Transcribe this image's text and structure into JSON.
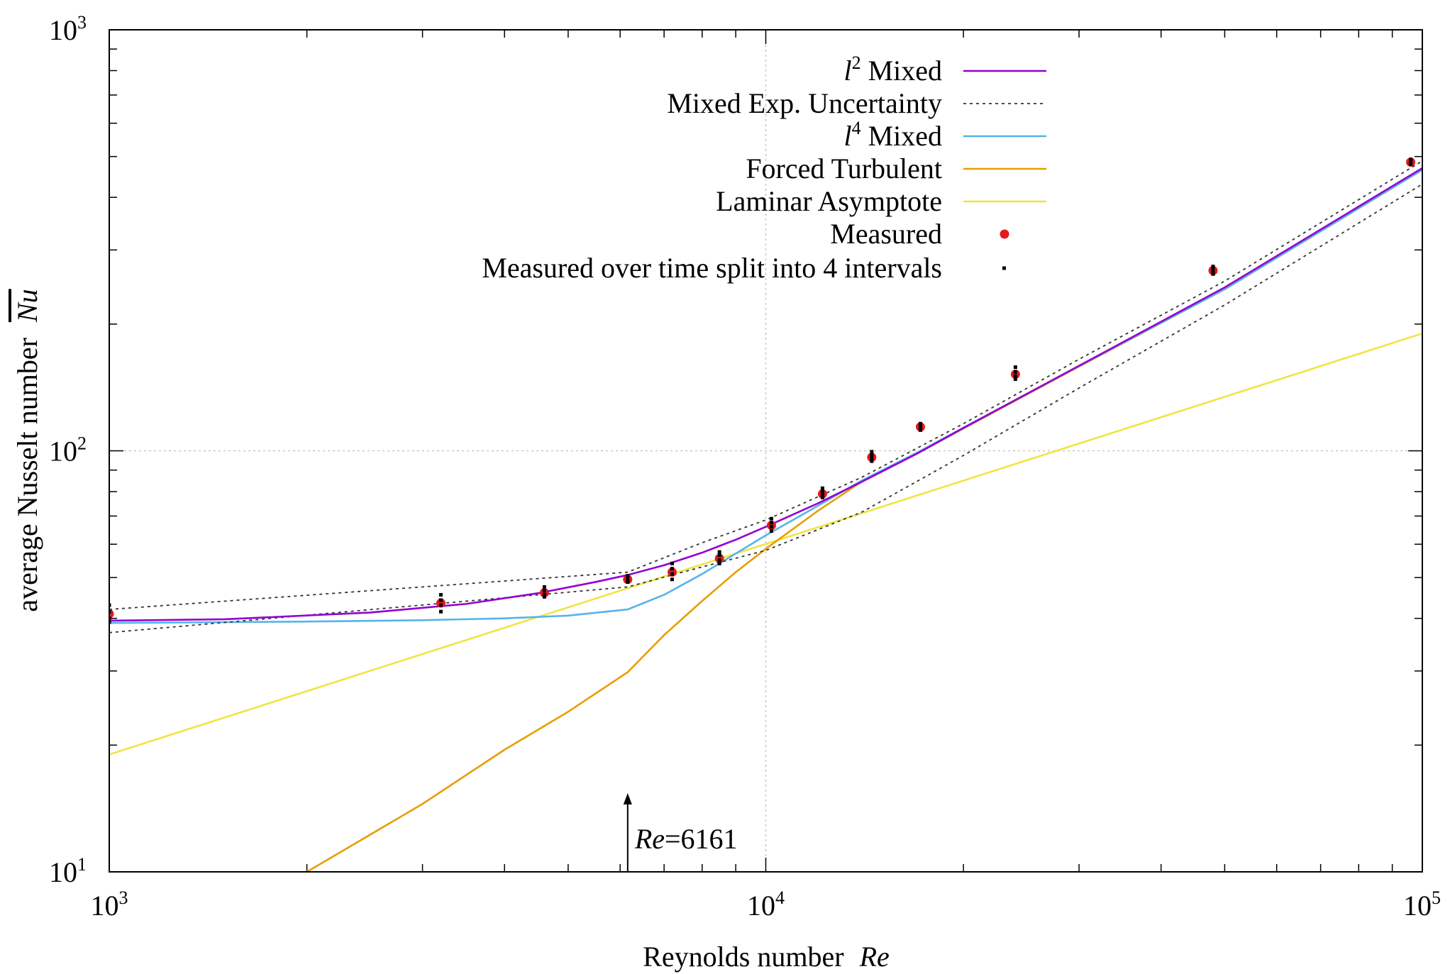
{
  "chart_data": {
    "type": "line",
    "xscale": "log",
    "yscale": "log",
    "xlim": [
      1000,
      100000
    ],
    "ylim": [
      10,
      1000
    ],
    "x_ticks": [
      {
        "base": "10",
        "exp": "3",
        "value": 1000
      },
      {
        "base": "10",
        "exp": "4",
        "value": 10000
      },
      {
        "base": "10",
        "exp": "5",
        "value": 100000
      }
    ],
    "y_ticks": [
      {
        "base": "10",
        "exp": "1",
        "value": 10
      },
      {
        "base": "10",
        "exp": "2",
        "value": 100
      },
      {
        "base": "10",
        "exp": "3",
        "value": 1000
      }
    ],
    "xlabel": "Reynolds number",
    "xlabel_symbol": "Re",
    "ylabel": "average Nusselt number",
    "ylabel_symbol": "Nu",
    "grid": "major lines at 10^4 (x) and 10^2 (y), dotted",
    "legend_position": "top-right",
    "annotation": {
      "symbol": "Re",
      "text": "=6161",
      "x": 6161
    },
    "series": [
      {
        "name_prefix": "l",
        "name_sup": "2",
        "name_suffix": " Mixed",
        "style": "line",
        "color": "#9400d3",
        "x": [
          1000,
          1500,
          2500,
          3500,
          4500,
          5500,
          6161,
          7000,
          8000,
          9000,
          10000,
          12000,
          14000,
          17000,
          20000,
          30000,
          50000,
          100000
        ],
        "y": [
          39.5,
          39.8,
          41.3,
          43.3,
          45.9,
          48.8,
          50.7,
          53.5,
          57.3,
          61.5,
          66.0,
          75.0,
          84.4,
          98.5,
          113.3,
          159.2,
          244.4,
          469.4
        ]
      },
      {
        "name": "Mixed Exp. Uncertainty",
        "style": "dotted",
        "color": "#333333",
        "bands": [
          {
            "x": [
              1000,
              6161,
              8000,
              10000,
              14000,
              20000,
              30000,
              50000,
              100000
            ],
            "y": [
              42.0,
              51.5,
              60.5,
              68.5,
              86.5,
              116.0,
              165.0,
              253.0,
              488.0
            ]
          },
          {
            "x": [
              1000,
              6161,
              8000,
              10000,
              14000,
              20000,
              30000,
              50000,
              100000
            ],
            "y": [
              37.0,
              47.5,
              53.0,
              58.0,
              71.5,
              97.5,
              141.0,
              222.0,
              430.0
            ]
          }
        ]
      },
      {
        "name_prefix": "l",
        "name_sup": "4",
        "name_suffix": " Mixed",
        "style": "line",
        "color": "#56b4e9",
        "x": [
          1000,
          2000,
          3000,
          4000,
          5000,
          6161,
          7000,
          8000,
          9000,
          10000,
          12000,
          14000,
          17000,
          20000,
          30000,
          50000,
          100000
        ],
        "y": [
          39.0,
          39.3,
          39.6,
          40.0,
          40.6,
          42.0,
          45.5,
          51.0,
          57.0,
          63.0,
          74.0,
          85.0,
          99.0,
          113.5,
          159.0,
          242.0,
          465.0
        ]
      },
      {
        "name": "Forced Turbulent",
        "style": "line",
        "color": "#e69f00",
        "x": [
          2000,
          3000,
          4000,
          5000,
          6161,
          7000,
          8000,
          9000,
          10000,
          12000,
          14000,
          17000,
          20000,
          30000,
          50000,
          100000
        ],
        "y": [
          10.0,
          14.5,
          19.5,
          24.0,
          29.8,
          36.5,
          44.0,
          51.5,
          58.5,
          72.0,
          84.5,
          98.5,
          113.0,
          158.5,
          242.0,
          465.0
        ]
      },
      {
        "name": "Laminar Asymptote",
        "style": "line",
        "color": "#f0e442",
        "x": [
          1000,
          100000
        ],
        "y": [
          19.0,
          190.0
        ]
      },
      {
        "name": "Measured",
        "style": "points",
        "color": "#e41a1c",
        "x": [
          1000,
          3200,
          4600,
          6161,
          7200,
          8500,
          10200,
          12200,
          14500,
          17200,
          24000,
          48000,
          96000
        ],
        "y": [
          41.0,
          43.5,
          46.0,
          49.5,
          51.5,
          55.5,
          66.5,
          79.0,
          96.5,
          114.0,
          152.0,
          268.0,
          485.0
        ]
      },
      {
        "name": "Measured over time split into 4 intervals",
        "style": "points",
        "color": "#000000",
        "points": [
          [
            1000,
            43.0
          ],
          [
            1000,
            40.0
          ],
          [
            1000,
            41.5
          ],
          [
            1000,
            39.2
          ],
          [
            3200,
            45.5
          ],
          [
            3200,
            41.5
          ],
          [
            3200,
            43.0
          ],
          [
            3200,
            44.2
          ],
          [
            4600,
            47.5
          ],
          [
            4600,
            45.0
          ],
          [
            4600,
            46.5
          ],
          [
            4600,
            45.5
          ],
          [
            6161,
            50.5
          ],
          [
            6161,
            49.0
          ],
          [
            6161,
            50.0
          ],
          [
            6161,
            48.8
          ],
          [
            7200,
            54.0
          ],
          [
            7200,
            49.5
          ],
          [
            7200,
            52.5
          ],
          [
            7200,
            51.0
          ],
          [
            8500,
            57.5
          ],
          [
            8500,
            54.0
          ],
          [
            8500,
            56.5
          ],
          [
            8500,
            55.0
          ],
          [
            10200,
            69.0
          ],
          [
            10200,
            64.5
          ],
          [
            10200,
            67.5
          ],
          [
            10200,
            66.0
          ],
          [
            12200,
            81.5
          ],
          [
            12200,
            77.5
          ],
          [
            12200,
            80.0
          ],
          [
            12200,
            78.5
          ],
          [
            14500,
            99.5
          ],
          [
            14500,
            94.5
          ],
          [
            14500,
            97.5
          ],
          [
            14500,
            96.0
          ],
          [
            17200,
            116.0
          ],
          [
            17200,
            112.0
          ],
          [
            17200,
            114.5
          ],
          [
            17200,
            113.0
          ],
          [
            24000,
            158.0
          ],
          [
            24000,
            148.0
          ],
          [
            24000,
            154.0
          ],
          [
            24000,
            150.5
          ],
          [
            48000,
            274.0
          ],
          [
            48000,
            263.0
          ],
          [
            48000,
            270.0
          ],
          [
            48000,
            266.0
          ],
          [
            96000,
            492.0
          ],
          [
            96000,
            480.0
          ],
          [
            96000,
            488.0
          ],
          [
            96000,
            483.0
          ]
        ]
      }
    ]
  }
}
